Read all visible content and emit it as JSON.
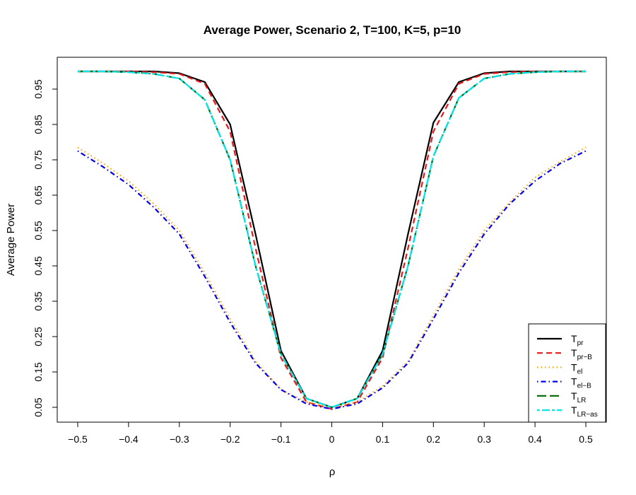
{
  "chart_data": {
    "type": "line",
    "title": "Average Power, Scenario 2, T=100, K=5, p=10",
    "xlabel": "ρ",
    "ylabel": "Average Power",
    "xlim": [
      -0.5,
      0.5
    ],
    "ylim": [
      0.05,
      1.0
    ],
    "xticks": [
      -0.5,
      -0.4,
      -0.3,
      -0.2,
      -0.1,
      0,
      0.1,
      0.2,
      0.3,
      0.4,
      0.5
    ],
    "xtick_labels": [
      "−0.5",
      "−0.4",
      "−0.3",
      "−0.2",
      "−0.1",
      "0",
      "0.1",
      "0.2",
      "0.3",
      "0.4",
      "0.5"
    ],
    "yticks": [
      0.05,
      0.15,
      0.25,
      0.35,
      0.45,
      0.55,
      0.65,
      0.75,
      0.85,
      0.95
    ],
    "ytick_labels": [
      "0.05",
      "0.15",
      "0.25",
      "0.35",
      "0.45",
      "0.55",
      "0.65",
      "0.75",
      "0.85",
      "0.95"
    ],
    "grid": false,
    "legend_position": "bottom-right",
    "x": [
      -0.5,
      -0.45,
      -0.4,
      -0.35,
      -0.3,
      -0.25,
      -0.2,
      -0.15,
      -0.1,
      -0.05,
      0,
      0.05,
      0.1,
      0.15,
      0.2,
      0.25,
      0.3,
      0.35,
      0.4,
      0.45,
      0.5
    ],
    "series": [
      {
        "name": "T",
        "sub": "pr",
        "color": "#000000",
        "dash": "solid",
        "values": [
          1.0,
          1.0,
          1.0,
          1.0,
          0.995,
          0.97,
          0.85,
          0.54,
          0.21,
          0.075,
          0.05,
          0.075,
          0.21,
          0.54,
          0.855,
          0.97,
          0.995,
          1.0,
          1.0,
          1.0,
          1.0
        ]
      },
      {
        "name": "T",
        "sub": "pr−B",
        "color": "#e41a1c",
        "dash": "dashed",
        "values": [
          1.0,
          1.0,
          1.0,
          0.998,
          0.993,
          0.965,
          0.83,
          0.5,
          0.19,
          0.065,
          0.045,
          0.065,
          0.19,
          0.5,
          0.83,
          0.965,
          0.993,
          0.998,
          1.0,
          1.0,
          1.0
        ]
      },
      {
        "name": "T",
        "sub": "el",
        "color": "#ffa500",
        "dash": "dotted",
        "values": [
          0.785,
          0.74,
          0.69,
          0.625,
          0.55,
          0.43,
          0.3,
          0.18,
          0.1,
          0.065,
          0.05,
          0.065,
          0.11,
          0.18,
          0.31,
          0.44,
          0.55,
          0.63,
          0.7,
          0.745,
          0.785
        ]
      },
      {
        "name": "T",
        "sub": "el−B",
        "color": "#0000ee",
        "dash": "dotdash",
        "values": [
          0.775,
          0.73,
          0.68,
          0.615,
          0.54,
          0.42,
          0.29,
          0.175,
          0.1,
          0.06,
          0.045,
          0.06,
          0.105,
          0.175,
          0.3,
          0.43,
          0.54,
          0.625,
          0.69,
          0.74,
          0.775
        ]
      },
      {
        "name": "T",
        "sub": "LR",
        "color": "#006400",
        "dash": "longdash",
        "values": [
          1.0,
          1.0,
          0.998,
          0.993,
          0.98,
          0.92,
          0.75,
          0.45,
          0.2,
          0.075,
          0.05,
          0.075,
          0.2,
          0.45,
          0.76,
          0.925,
          0.98,
          0.993,
          0.998,
          1.0,
          1.0
        ]
      },
      {
        "name": "T",
        "sub": "LR−as",
        "color": "#00e5ee",
        "dash": "twodash",
        "values": [
          1.0,
          1.0,
          0.998,
          0.993,
          0.98,
          0.92,
          0.75,
          0.45,
          0.2,
          0.075,
          0.05,
          0.075,
          0.2,
          0.45,
          0.76,
          0.925,
          0.98,
          0.993,
          0.998,
          1.0,
          1.0
        ]
      }
    ]
  }
}
